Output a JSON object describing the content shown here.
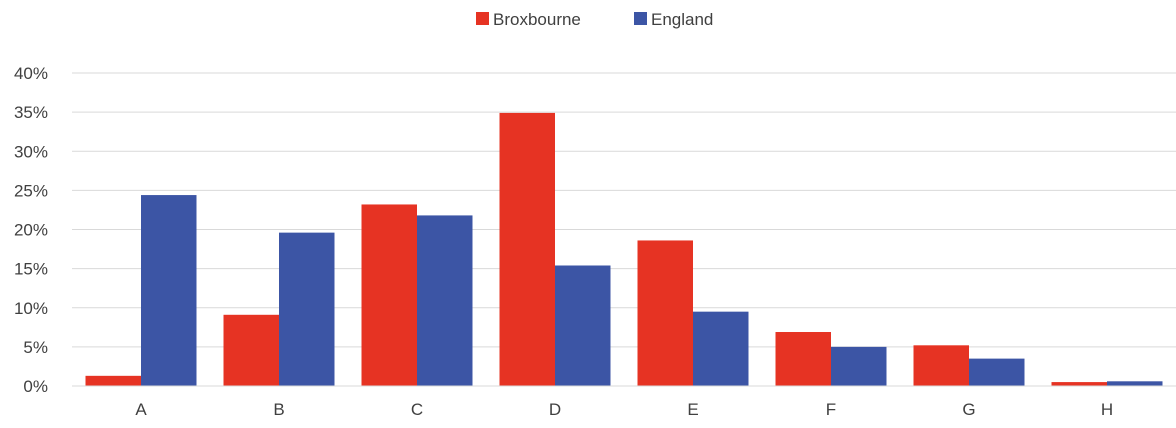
{
  "chart_data": {
    "type": "bar",
    "title": "",
    "xlabel": "",
    "ylabel": "",
    "categories": [
      "A",
      "B",
      "C",
      "D",
      "E",
      "F",
      "G",
      "H"
    ],
    "series": [
      {
        "name": "Broxbourne",
        "color": "#e63323",
        "values": [
          1.3,
          9.1,
          23.2,
          34.9,
          18.6,
          6.9,
          5.2,
          0.5
        ]
      },
      {
        "name": "England",
        "color": "#3c55a5",
        "values": [
          24.4,
          19.6,
          21.8,
          15.4,
          9.5,
          5.0,
          3.5,
          0.6
        ]
      }
    ],
    "ylim": [
      0,
      40
    ],
    "y_ticks": [
      "0%",
      "5%",
      "10%",
      "15%",
      "20%",
      "25%",
      "30%",
      "35%",
      "40%"
    ],
    "grid": true,
    "legend_position": "top-center"
  }
}
